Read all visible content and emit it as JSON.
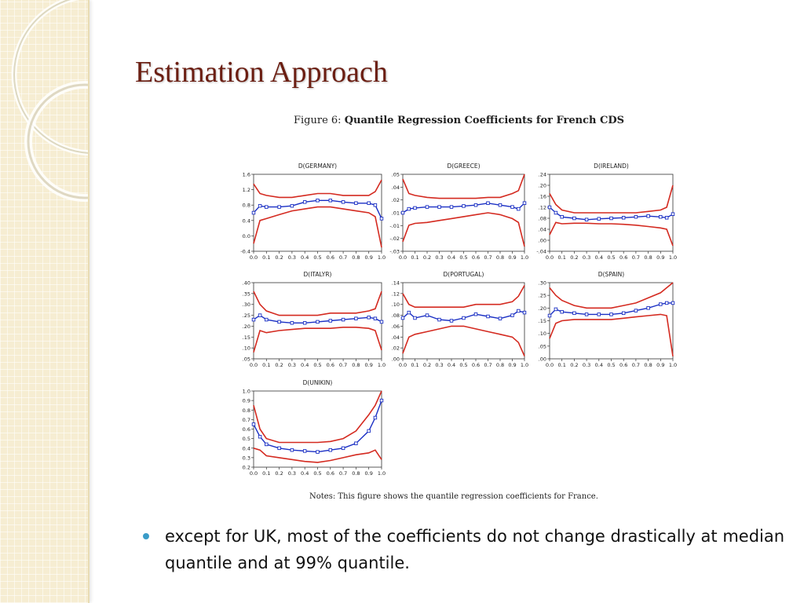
{
  "slide": {
    "title": "Estimation Approach",
    "figure_label": "Figure 6:",
    "figure_title": "Quantile Regression Coefficients for French CDS",
    "notes": "Notes:  This figure shows the quantile regression coefficients for France.",
    "bullets": [
      "except for UK, most of the coefficients do not change drastically at median quantile and at 99% quantile."
    ],
    "colors": {
      "title": "#6b1e12",
      "bullet": "#3a9cc8",
      "band": "#d42a20",
      "coef": "#1a2fc4",
      "sidebar": "#f6edd2"
    }
  },
  "chart_data": [
    {
      "type": "line",
      "title": "D(GERMANY)",
      "x": [
        0.0,
        0.05,
        0.1,
        0.2,
        0.3,
        0.4,
        0.5,
        0.6,
        0.7,
        0.8,
        0.9,
        0.95,
        1.0
      ],
      "xticks": [
        "0.0",
        "0.1",
        "0.2",
        "0.3",
        "0.4",
        "0.5",
        "0.6",
        "0.7",
        "0.8",
        "0.9",
        "1.0"
      ],
      "ylim": [
        -0.4,
        1.6
      ],
      "yticks": [
        "1.6",
        "1.2",
        "0.8",
        "0.4",
        "0.0",
        "-0.4"
      ],
      "series": [
        {
          "role": "upper",
          "values": [
            1.35,
            1.1,
            1.05,
            1.0,
            1.0,
            1.05,
            1.1,
            1.1,
            1.05,
            1.05,
            1.05,
            1.15,
            1.45
          ]
        },
        {
          "role": "coef",
          "values": [
            0.6,
            0.78,
            0.75,
            0.75,
            0.78,
            0.88,
            0.92,
            0.92,
            0.88,
            0.85,
            0.85,
            0.8,
            0.45
          ]
        },
        {
          "role": "lower",
          "values": [
            -0.2,
            0.4,
            0.45,
            0.55,
            0.65,
            0.7,
            0.75,
            0.75,
            0.7,
            0.65,
            0.6,
            0.5,
            -0.3
          ]
        }
      ]
    },
    {
      "type": "line",
      "title": "D(GREECE)",
      "x": [
        0.0,
        0.05,
        0.1,
        0.2,
        0.3,
        0.4,
        0.5,
        0.6,
        0.7,
        0.8,
        0.9,
        0.95,
        1.0
      ],
      "xticks": [
        "0.0",
        "0.1",
        "0.2",
        "0.3",
        "0.4",
        "0.5",
        "0.6",
        "0.7",
        "0.8",
        "0.9",
        "1.0"
      ],
      "ylim": [
        -0.03,
        0.05
      ],
      "yticks": [
        ".05",
        ".04",
        ".02",
        ".01",
        "-.01",
        "-.02",
        "-.03"
      ],
      "series": [
        {
          "role": "upper",
          "values": [
            0.045,
            0.03,
            0.028,
            0.026,
            0.025,
            0.025,
            0.025,
            0.025,
            0.026,
            0.026,
            0.03,
            0.033,
            0.05
          ]
        },
        {
          "role": "coef",
          "values": [
            0.01,
            0.014,
            0.015,
            0.016,
            0.016,
            0.016,
            0.017,
            0.018,
            0.02,
            0.018,
            0.016,
            0.014,
            0.02
          ]
        },
        {
          "role": "lower",
          "values": [
            -0.02,
            -0.003,
            -0.001,
            0.0,
            0.002,
            0.004,
            0.006,
            0.008,
            0.01,
            0.008,
            0.004,
            0.0,
            -0.025
          ]
        }
      ]
    },
    {
      "type": "line",
      "title": "D(IRELAND)",
      "x": [
        0.0,
        0.05,
        0.1,
        0.2,
        0.3,
        0.4,
        0.5,
        0.6,
        0.7,
        0.8,
        0.9,
        0.95,
        1.0
      ],
      "xticks": [
        "0.0",
        "0.1",
        "0.2",
        "0.3",
        "0.4",
        "0.5",
        "0.6",
        "0.7",
        "0.8",
        "0.9",
        "1.0"
      ],
      "ylim": [
        -0.04,
        0.24
      ],
      "yticks": [
        ".24",
        ".20",
        ".16",
        ".12",
        ".08",
        ".04",
        ".00",
        "-.04"
      ],
      "series": [
        {
          "role": "upper",
          "values": [
            0.17,
            0.13,
            0.11,
            0.1,
            0.1,
            0.1,
            0.1,
            0.1,
            0.1,
            0.105,
            0.11,
            0.12,
            0.2
          ]
        },
        {
          "role": "coef",
          "values": [
            0.12,
            0.1,
            0.085,
            0.08,
            0.075,
            0.078,
            0.08,
            0.082,
            0.085,
            0.088,
            0.085,
            0.082,
            0.095
          ]
        },
        {
          "role": "lower",
          "values": [
            0.02,
            0.065,
            0.06,
            0.062,
            0.062,
            0.06,
            0.06,
            0.058,
            0.055,
            0.05,
            0.045,
            0.04,
            -0.02
          ]
        }
      ]
    },
    {
      "type": "line",
      "title": "D(ITALYR)",
      "x": [
        0.0,
        0.05,
        0.1,
        0.2,
        0.3,
        0.4,
        0.5,
        0.6,
        0.7,
        0.8,
        0.9,
        0.95,
        1.0
      ],
      "xticks": [
        "0.0",
        "0.1",
        "0.2",
        "0.3",
        "0.4",
        "0.5",
        "0.6",
        "0.7",
        "0.8",
        "0.9",
        "1.0"
      ],
      "ylim": [
        0.05,
        0.4
      ],
      "yticks": [
        ".40",
        ".35",
        ".30",
        ".25",
        ".20",
        ".15",
        ".10",
        ".05"
      ],
      "series": [
        {
          "role": "upper",
          "values": [
            0.36,
            0.3,
            0.27,
            0.25,
            0.25,
            0.25,
            0.25,
            0.26,
            0.26,
            0.26,
            0.27,
            0.28,
            0.36
          ]
        },
        {
          "role": "coef",
          "values": [
            0.23,
            0.25,
            0.23,
            0.22,
            0.215,
            0.215,
            0.22,
            0.225,
            0.23,
            0.235,
            0.24,
            0.235,
            0.22
          ]
        },
        {
          "role": "lower",
          "values": [
            0.08,
            0.18,
            0.17,
            0.18,
            0.185,
            0.19,
            0.19,
            0.19,
            0.195,
            0.195,
            0.19,
            0.18,
            0.09
          ]
        }
      ]
    },
    {
      "type": "line",
      "title": "D(PORTUGAL)",
      "x": [
        0.0,
        0.05,
        0.1,
        0.2,
        0.3,
        0.4,
        0.5,
        0.6,
        0.7,
        0.8,
        0.9,
        0.95,
        1.0
      ],
      "xticks": [
        "0.0",
        "0.1",
        "0.2",
        "0.3",
        "0.4",
        "0.5",
        "0.6",
        "0.7",
        "0.8",
        "0.9",
        "1.0"
      ],
      "ylim": [
        0.0,
        0.14
      ],
      "yticks": [
        ".14",
        ".12",
        ".10",
        ".08",
        ".06",
        ".04",
        ".02",
        ".00"
      ],
      "series": [
        {
          "role": "upper",
          "values": [
            0.12,
            0.1,
            0.095,
            0.095,
            0.095,
            0.095,
            0.095,
            0.1,
            0.1,
            0.1,
            0.105,
            0.115,
            0.135
          ]
        },
        {
          "role": "coef",
          "values": [
            0.075,
            0.085,
            0.075,
            0.08,
            0.072,
            0.07,
            0.075,
            0.082,
            0.078,
            0.074,
            0.08,
            0.088,
            0.085
          ]
        },
        {
          "role": "lower",
          "values": [
            0.01,
            0.04,
            0.045,
            0.05,
            0.055,
            0.06,
            0.06,
            0.055,
            0.05,
            0.045,
            0.04,
            0.03,
            0.005
          ]
        }
      ]
    },
    {
      "type": "line",
      "title": "D(SPAIN)",
      "x": [
        0.0,
        0.05,
        0.1,
        0.2,
        0.3,
        0.4,
        0.5,
        0.6,
        0.7,
        0.8,
        0.9,
        0.95,
        1.0
      ],
      "xticks": [
        "0.0",
        "0.1",
        "0.2",
        "0.3",
        "0.4",
        "0.5",
        "0.6",
        "0.7",
        "0.8",
        "0.9",
        "1.0"
      ],
      "ylim": [
        0.0,
        0.3
      ],
      "yticks": [
        ".30",
        ".25",
        ".20",
        ".15",
        ".10",
        ".05",
        ".00"
      ],
      "series": [
        {
          "role": "upper",
          "values": [
            0.28,
            0.25,
            0.23,
            0.21,
            0.2,
            0.2,
            0.2,
            0.21,
            0.22,
            0.24,
            0.26,
            0.28,
            0.3
          ]
        },
        {
          "role": "coef",
          "values": [
            0.17,
            0.195,
            0.185,
            0.18,
            0.175,
            0.175,
            0.175,
            0.18,
            0.19,
            0.2,
            0.215,
            0.22,
            0.22
          ]
        },
        {
          "role": "lower",
          "values": [
            0.08,
            0.14,
            0.15,
            0.155,
            0.155,
            0.155,
            0.155,
            0.16,
            0.165,
            0.17,
            0.175,
            0.17,
            0.01
          ]
        }
      ]
    },
    {
      "type": "line",
      "title": "D(UNIKIN)",
      "x": [
        0.0,
        0.05,
        0.1,
        0.2,
        0.3,
        0.4,
        0.5,
        0.6,
        0.7,
        0.8,
        0.9,
        0.95,
        1.0
      ],
      "xticks": [
        "0.0",
        "0.1",
        "0.2",
        "0.3",
        "0.4",
        "0.5",
        "0.6",
        "0.7",
        "0.8",
        "0.9",
        "1.0"
      ],
      "ylim": [
        0.2,
        1.0
      ],
      "yticks": [
        "1.0",
        "0.9",
        "0.8",
        "0.7",
        "0.6",
        "0.5",
        "0.4",
        "0.3",
        "0.2"
      ],
      "series": [
        {
          "role": "upper",
          "values": [
            0.85,
            0.6,
            0.5,
            0.46,
            0.46,
            0.46,
            0.46,
            0.47,
            0.5,
            0.58,
            0.75,
            0.85,
            1.0
          ]
        },
        {
          "role": "coef",
          "values": [
            0.65,
            0.52,
            0.44,
            0.4,
            0.38,
            0.37,
            0.36,
            0.38,
            0.4,
            0.45,
            0.58,
            0.72,
            0.9
          ]
        },
        {
          "role": "lower",
          "values": [
            0.4,
            0.38,
            0.32,
            0.3,
            0.28,
            0.26,
            0.25,
            0.27,
            0.3,
            0.33,
            0.35,
            0.38,
            0.28
          ]
        }
      ]
    }
  ]
}
